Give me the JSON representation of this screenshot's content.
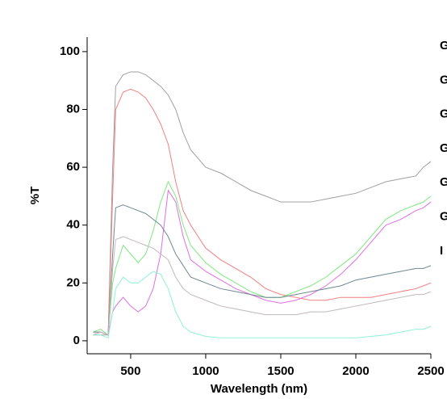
{
  "chart_data": {
    "type": "line",
    "x_label": "Wavelength (nm)",
    "y_label": "%T",
    "xlim": [
      210,
      2500
    ],
    "ylim": [
      -4.5,
      105
    ],
    "xticks": [
      500,
      1000,
      1500,
      2000,
      2500
    ],
    "yticks": [
      0,
      20,
      40,
      60,
      80,
      100
    ],
    "grid": false,
    "x": [
      250,
      300,
      350,
      380,
      400,
      450,
      500,
      550,
      600,
      650,
      700,
      750,
      800,
      850,
      900,
      1000,
      1100,
      1200,
      1300,
      1400,
      1500,
      1600,
      1700,
      1800,
      1900,
      2000,
      2100,
      2200,
      2300,
      2400,
      2450,
      2500
    ],
    "series": [
      {
        "name": "G",
        "color": "#a0a0a0",
        "values": [
          2,
          2,
          2,
          60,
          88,
          92,
          93,
          93,
          92,
          90,
          88,
          85,
          80,
          72,
          66,
          60,
          58,
          55,
          52,
          50,
          48,
          48,
          48,
          49,
          50,
          51,
          53,
          55,
          56,
          57,
          60,
          62
        ]
      },
      {
        "name": "G",
        "color": "#f08080",
        "values": [
          3,
          3,
          2,
          50,
          80,
          86,
          87,
          86,
          84,
          80,
          75,
          68,
          55,
          45,
          40,
          32,
          28,
          25,
          22,
          18,
          16,
          15,
          14,
          14,
          15,
          15,
          15,
          16,
          17,
          18,
          19,
          20
        ]
      },
      {
        "name": "G",
        "color": "#80e880",
        "values": [
          3,
          4,
          2,
          20,
          25,
          33,
          30,
          27,
          30,
          38,
          48,
          55,
          50,
          40,
          33,
          27,
          23,
          20,
          17,
          15,
          15,
          17,
          19,
          22,
          26,
          30,
          36,
          42,
          45,
          47,
          48,
          50
        ]
      },
      {
        "name": "G",
        "color": "#e070e0",
        "values": [
          2,
          3,
          2,
          10,
          12,
          15,
          12,
          10,
          12,
          18,
          30,
          52,
          48,
          36,
          28,
          24,
          21,
          18,
          16,
          14,
          13,
          14,
          16,
          19,
          23,
          28,
          34,
          40,
          42,
          45,
          46,
          48
        ]
      },
      {
        "name": "G",
        "color": "#708890",
        "values": [
          3,
          3,
          2,
          30,
          46,
          47,
          46,
          45,
          44,
          42,
          40,
          36,
          30,
          26,
          22,
          20,
          18,
          17,
          16,
          15,
          15,
          16,
          17,
          18,
          19,
          21,
          22,
          23,
          24,
          25,
          25,
          26
        ]
      },
      {
        "name": "G",
        "color": "#c0b8bc",
        "values": [
          2,
          3,
          2,
          25,
          35,
          36,
          35,
          34,
          33,
          32,
          30,
          28,
          22,
          18,
          16,
          14,
          12,
          11,
          10,
          9,
          9,
          9,
          10,
          10,
          11,
          12,
          13,
          14,
          15,
          16,
          16,
          17
        ]
      },
      {
        "name": "I",
        "color": "#90f0d8",
        "values": [
          2,
          2,
          1,
          10,
          18,
          22,
          20,
          20,
          22,
          24,
          23,
          18,
          10,
          5,
          3,
          1.5,
          1,
          1,
          1,
          1,
          1,
          1,
          1,
          1,
          1,
          1,
          1.5,
          2,
          3,
          4,
          4,
          5
        ]
      }
    ]
  }
}
